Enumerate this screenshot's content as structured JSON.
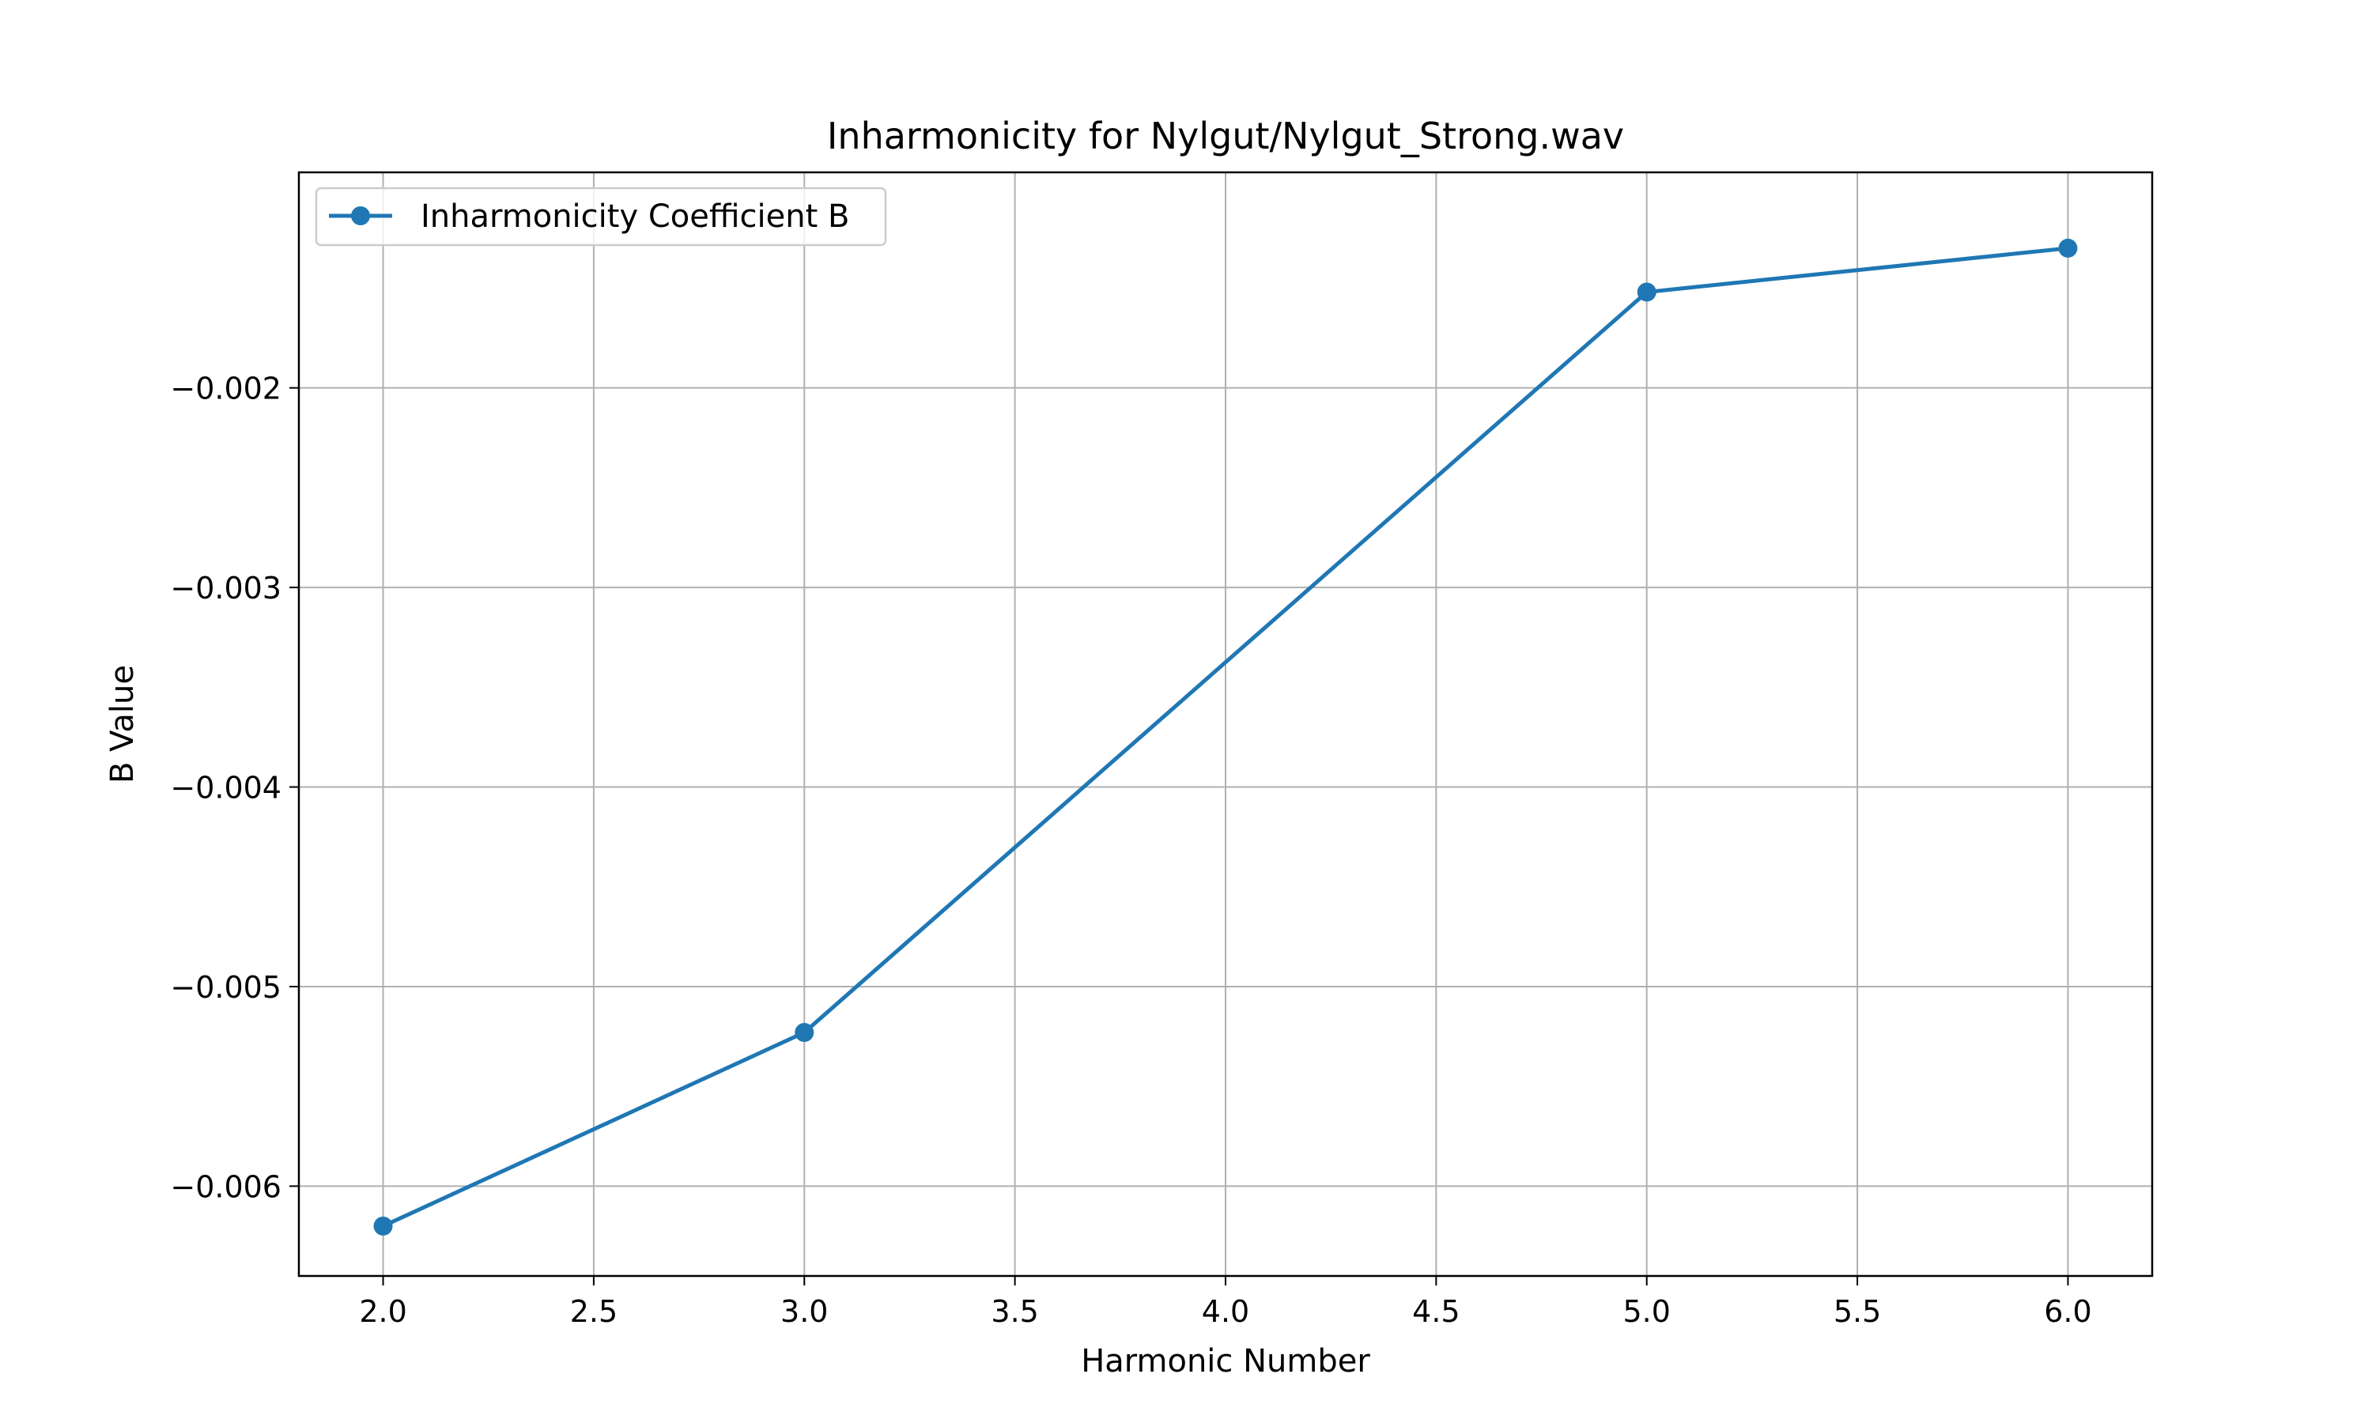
{
  "chart_data": {
    "type": "line",
    "title": "Inharmonicity for Nylgut/Nylgut_Strong.wav",
    "xlabel": "Harmonic Number",
    "ylabel": "B Value",
    "xlim": [
      1.8,
      6.2
    ],
    "ylim": [
      -0.00645,
      -0.00092
    ],
    "xticks": [
      2.0,
      2.5,
      3.0,
      3.5,
      4.0,
      4.5,
      5.0,
      5.5,
      6.0
    ],
    "xtick_labels": [
      "2.0",
      "2.5",
      "3.0",
      "3.5",
      "4.0",
      "4.5",
      "5.0",
      "5.5",
      "6.0"
    ],
    "yticks": [
      -0.006,
      -0.005,
      -0.004,
      -0.003,
      -0.002
    ],
    "ytick_labels": [
      "−0.006",
      "−0.005",
      "−0.004",
      "−0.003",
      "−0.002"
    ],
    "grid": true,
    "legend_position": "upper-left",
    "series": [
      {
        "name": "Inharmonicity Coefficient B",
        "color": "#1f77b4",
        "marker": "circle",
        "x": [
          2,
          3,
          5,
          6
        ],
        "y": [
          -0.0062,
          -0.00523,
          -0.00152,
          -0.0013
        ]
      }
    ]
  }
}
